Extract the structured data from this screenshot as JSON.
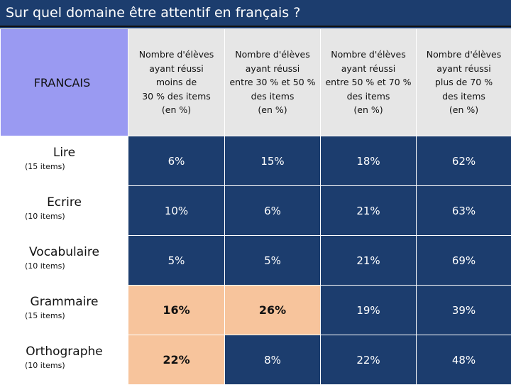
{
  "title": "Sur quel domaine  être attentif en français ?",
  "corner": "FRANCAIS",
  "headers": [
    [
      "Nombre d'élèves",
      "ayant réussi",
      "moins de",
      "30 % des items",
      "(en %)"
    ],
    [
      "Nombre d'élèves",
      "ayant réussi",
      "entre 30 % et 50 %",
      "des items",
      "(en %)"
    ],
    [
      "Nombre d'élèves",
      "ayant réussi",
      "entre 50 % et 70 %",
      "des items",
      "(en %)"
    ],
    [
      "Nombre d'élèves",
      "ayant réussi",
      "plus de 70 %",
      "des items",
      "(en %)"
    ]
  ],
  "rows": [
    {
      "name": "Lire",
      "items": "(15 items)",
      "values": [
        "6%",
        "15%",
        "18%",
        "62%"
      ],
      "highlight": [
        false,
        false,
        false,
        false
      ]
    },
    {
      "name": "Ecrire",
      "items": "(10 items)",
      "values": [
        "10%",
        "6%",
        "21%",
        "63%"
      ],
      "highlight": [
        false,
        false,
        false,
        false
      ]
    },
    {
      "name": "Vocabulaire",
      "items": "(10 items)",
      "values": [
        "5%",
        "5%",
        "21%",
        "69%"
      ],
      "highlight": [
        false,
        false,
        false,
        false
      ]
    },
    {
      "name": "Grammaire",
      "items": "(15 items)",
      "values": [
        "16%",
        "26%",
        "19%",
        "39%"
      ],
      "highlight": [
        true,
        true,
        false,
        false
      ]
    },
    {
      "name": "Orthographe",
      "items": "(10 items)",
      "values": [
        "22%",
        "8%",
        "22%",
        "48%"
      ],
      "highlight": [
        true,
        false,
        false,
        false
      ]
    }
  ],
  "colors": {
    "background": "#1c3d6e",
    "corner": "#9a9af2",
    "header": "#e6e6e6",
    "highlight": "#f7c49c"
  }
}
